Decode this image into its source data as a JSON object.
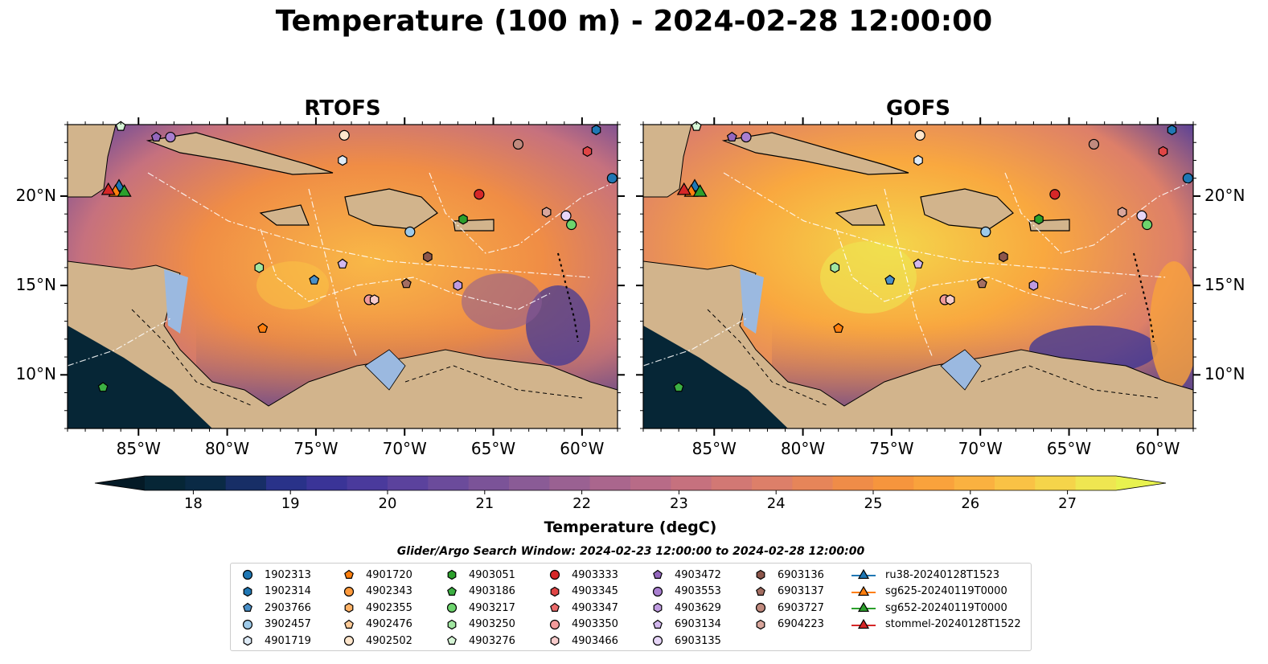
{
  "title": "Temperature (100 m) - 2024-02-28 12:00:00",
  "panels": [
    {
      "name": "RTOFS"
    },
    {
      "name": "GOFS"
    }
  ],
  "map": {
    "lon_range": [
      -89,
      -58
    ],
    "lat_range": [
      7,
      24
    ],
    "lon_ticks": [
      "85°W",
      "80°W",
      "75°W",
      "70°W",
      "65°W",
      "60°W"
    ],
    "lon_tick_values": [
      -85,
      -80,
      -75,
      -70,
      -65,
      -60
    ],
    "lat_ticks": [
      "10°N",
      "15°N",
      "20°N"
    ],
    "lat_tick_values": [
      10,
      15,
      20
    ],
    "land_color": "#d2b48c",
    "shelf_color": "#9bb9e0"
  },
  "colorbar": {
    "label": "Temperature (degC)",
    "ticks": [
      "18",
      "19",
      "20",
      "21",
      "22",
      "23",
      "24",
      "25",
      "26",
      "27"
    ],
    "min": 17.5,
    "max": 27.5,
    "colors": [
      "#062636",
      "#0a2a45",
      "#172e66",
      "#293289",
      "#3a3497",
      "#4a3a9c",
      "#5b429d",
      "#6b4b9b",
      "#7b5398",
      "#8a5b96",
      "#9a6192",
      "#aa668d",
      "#b86b87",
      "#c6717e",
      "#d27874",
      "#dd7f69",
      "#e68559",
      "#ef8c48",
      "#f6953d",
      "#f9a23c",
      "#fab140",
      "#f9c245",
      "#f5d44a",
      "#efe651"
    ],
    "over_color": "#e8f24f",
    "under_color": "#041a26"
  },
  "legend": {
    "title": "Glider/Argo Search Window: 2024-02-23 12:00:00 to 2024-02-28 12:00:00",
    "columns": [
      [
        {
          "label": "1902313",
          "marker": "circle",
          "color": "#1f77b4"
        },
        {
          "label": "1902314",
          "marker": "hexagon",
          "color": "#1f77b4"
        },
        {
          "label": "2903766",
          "marker": "pentagon",
          "color": "#4a90c8"
        },
        {
          "label": "3902457",
          "marker": "circle",
          "color": "#9ecae9"
        },
        {
          "label": "4901719",
          "marker": "hexagon",
          "color": "#deebf7"
        }
      ],
      [
        {
          "label": "4901720",
          "marker": "pentagon",
          "color": "#ff7f0e"
        },
        {
          "label": "4902343",
          "marker": "circle",
          "color": "#ff9a3c"
        },
        {
          "label": "4902355",
          "marker": "hexagon",
          "color": "#ffb266"
        },
        {
          "label": "4902476",
          "marker": "pentagon",
          "color": "#ffcc99"
        },
        {
          "label": "4902502",
          "marker": "circle",
          "color": "#ffe6cc"
        }
      ],
      [
        {
          "label": "4903051",
          "marker": "hexagon",
          "color": "#2ca02c"
        },
        {
          "label": "4903186",
          "marker": "pentagon",
          "color": "#3cb043"
        },
        {
          "label": "4903217",
          "marker": "circle",
          "color": "#6dd46d"
        },
        {
          "label": "4903250",
          "marker": "hexagon",
          "color": "#a1e6a1"
        },
        {
          "label": "4903276",
          "marker": "pentagon",
          "color": "#d6f5d6"
        }
      ],
      [
        {
          "label": "4903333",
          "marker": "circle",
          "color": "#d62728"
        },
        {
          "label": "4903345",
          "marker": "hexagon",
          "color": "#e04545"
        },
        {
          "label": "4903347",
          "marker": "pentagon",
          "color": "#eb6a6a"
        },
        {
          "label": "4903350",
          "marker": "circle",
          "color": "#f29b9b"
        },
        {
          "label": "4903466",
          "marker": "hexagon",
          "color": "#f8cccc"
        }
      ],
      [
        {
          "label": "4903472",
          "marker": "pentagon",
          "color": "#9467bd"
        },
        {
          "label": "4903553",
          "marker": "circle",
          "color": "#a97fd0"
        },
        {
          "label": "4903629",
          "marker": "hexagon",
          "color": "#bf9be0"
        },
        {
          "label": "6903134",
          "marker": "pentagon",
          "color": "#d3b8ee"
        },
        {
          "label": "6903135",
          "marker": "circle",
          "color": "#e6d5f7"
        }
      ],
      [
        {
          "label": "6903136",
          "marker": "hexagon",
          "color": "#8c564b"
        },
        {
          "label": "6903137",
          "marker": "pentagon",
          "color": "#a46e62"
        },
        {
          "label": "6903727",
          "marker": "circle",
          "color": "#c08a7e"
        },
        {
          "label": "6904223",
          "marker": "hexagon",
          "color": "#d9a69c"
        }
      ],
      [
        {
          "label": "ru38-20240128T1523",
          "marker": "triangle",
          "color": "#1f77b4",
          "line": true
        },
        {
          "label": "sg625-20240119T0000",
          "marker": "triangle",
          "color": "#ff7f0e",
          "line": true
        },
        {
          "label": "sg652-20240119T0000",
          "marker": "triangle",
          "color": "#2ca02c",
          "line": true
        },
        {
          "label": "stommel-20240128T1522",
          "marker": "triangle",
          "color": "#d62728",
          "line": true
        }
      ]
    ]
  },
  "observations": [
    {
      "id": "1902313",
      "lon": -58.3,
      "lat": 21.0
    },
    {
      "id": "1902314",
      "lon": -59.2,
      "lat": 23.7
    },
    {
      "id": "2903766",
      "lon": -75.1,
      "lat": 15.3
    },
    {
      "id": "3902457",
      "lon": -69.7,
      "lat": 18.0
    },
    {
      "id": "4901719",
      "lon": -73.5,
      "lat": 22.0
    },
    {
      "id": "4901720",
      "lon": -78.0,
      "lat": 12.6
    },
    {
      "id": "4902502",
      "lon": -73.4,
      "lat": 23.4
    },
    {
      "id": "4903051",
      "lon": -66.7,
      "lat": 18.7
    },
    {
      "id": "4903186",
      "lon": -87.0,
      "lat": 9.3
    },
    {
      "id": "4903217",
      "lon": -60.6,
      "lat": 18.4
    },
    {
      "id": "4903250",
      "lon": -78.2,
      "lat": 16.0
    },
    {
      "id": "4903276",
      "lon": -86.0,
      "lat": 23.9
    },
    {
      "id": "4903333",
      "lon": -65.8,
      "lat": 20.1
    },
    {
      "id": "4903345",
      "lon": -59.7,
      "lat": 22.5
    },
    {
      "id": "4903350",
      "lon": -72.0,
      "lat": 14.2
    },
    {
      "id": "4903466",
      "lon": -71.7,
      "lat": 14.2
    },
    {
      "id": "4903472",
      "lon": -84.0,
      "lat": 23.3
    },
    {
      "id": "4903553",
      "lon": -83.2,
      "lat": 23.3
    },
    {
      "id": "4903629",
      "lon": -67.0,
      "lat": 15.0
    },
    {
      "id": "6903134",
      "lon": -73.5,
      "lat": 16.2
    },
    {
      "id": "6903135",
      "lon": -60.9,
      "lat": 18.9
    },
    {
      "id": "6903136",
      "lon": -68.7,
      "lat": 16.6
    },
    {
      "id": "6903137",
      "lon": -69.9,
      "lat": 15.1
    },
    {
      "id": "6903727",
      "lon": -63.6,
      "lat": 22.9
    },
    {
      "id": "6904223",
      "lon": -62.0,
      "lat": 19.1
    }
  ],
  "gliders": [
    {
      "id": "ru38-20240128T1523",
      "lon": -86.1,
      "lat": 20.5
    },
    {
      "id": "sg625-20240119T0000",
      "lon": -86.3,
      "lat": 20.2
    },
    {
      "id": "sg652-20240119T0000",
      "lon": -85.8,
      "lat": 20.2
    },
    {
      "id": "stommel-20240128T1522",
      "lon": -86.7,
      "lat": 20.3
    }
  ]
}
